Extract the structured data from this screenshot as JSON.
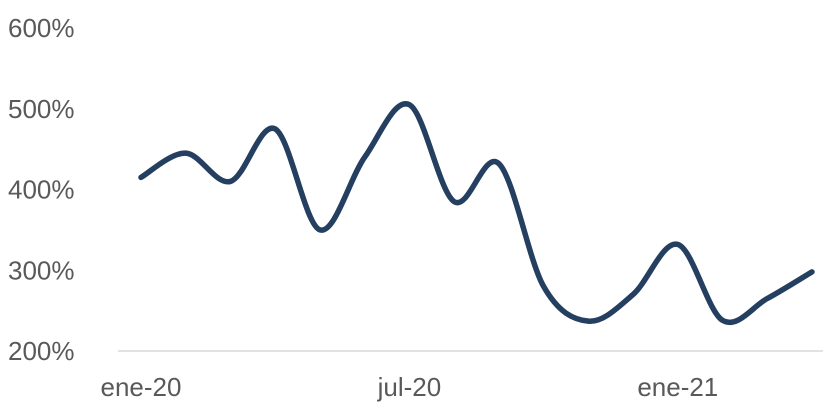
{
  "chart_data": {
    "type": "line",
    "title": "",
    "xlabel": "",
    "ylabel": "",
    "ylim": [
      200,
      600
    ],
    "y_ticks": [
      200,
      300,
      400,
      500,
      600
    ],
    "y_tick_labels": [
      "200%",
      "300%",
      "400%",
      "500%",
      "600%"
    ],
    "y_unit": "%",
    "x_tick_labels": [
      {
        "label": "ene-20",
        "index": 0
      },
      {
        "label": "jul-20",
        "index": 6
      },
      {
        "label": "ene-21",
        "index": 12
      }
    ],
    "grid": false,
    "legend": "none",
    "smooth": true,
    "line_color": "#243F60",
    "axis_color": "#d9d9d9",
    "series": [
      {
        "values": [
          415,
          445,
          410,
          475,
          350,
          440,
          505,
          385,
          432,
          280,
          237,
          270,
          332,
          238,
          265,
          298
        ]
      }
    ]
  }
}
